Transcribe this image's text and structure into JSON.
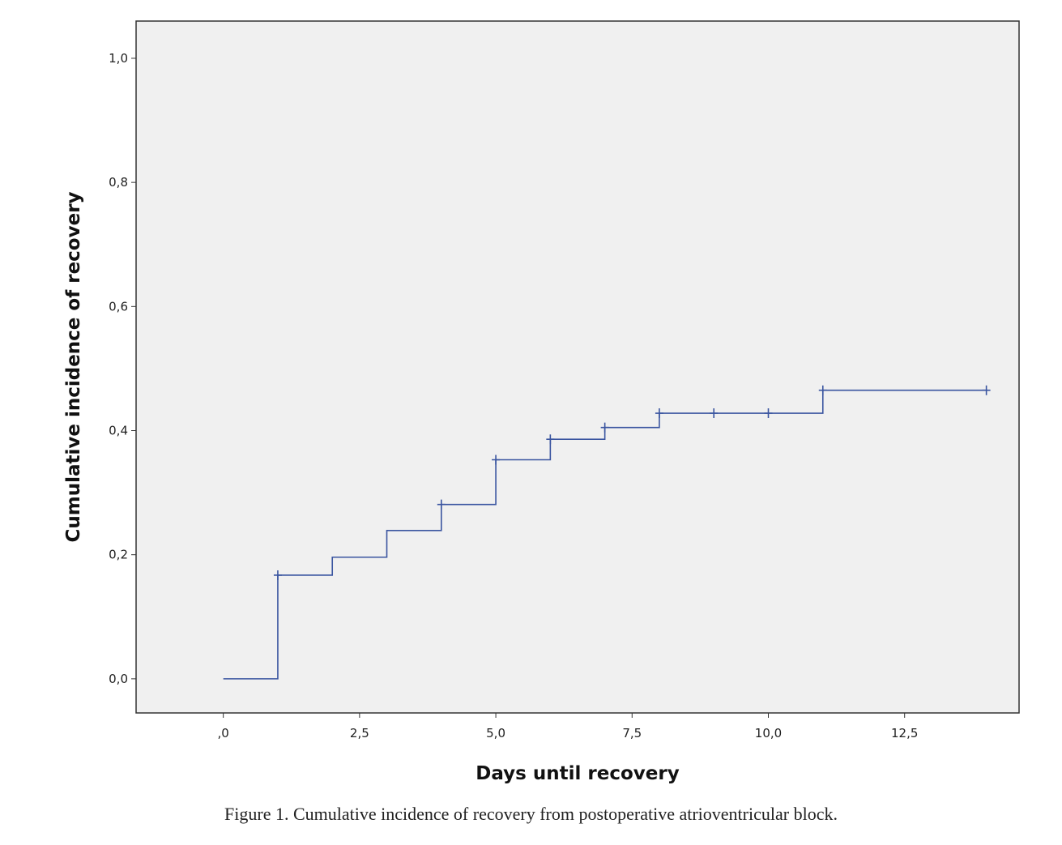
{
  "chart_data": {
    "type": "line",
    "subtype": "step",
    "xlabel": "Days until recovery",
    "ylabel": "Cumulative incidence of recovery",
    "xlim": [
      -1.6,
      14.6
    ],
    "ylim": [
      -0.055,
      1.06
    ],
    "x_ticks": [
      0,
      2.5,
      5,
      7.5,
      10,
      12.5
    ],
    "x_tick_labels": [
      ",0",
      "2,5",
      "5,0",
      "7,5",
      "10,0",
      "12,5"
    ],
    "y_ticks": [
      0,
      0.2,
      0.4,
      0.6,
      0.8,
      1.0
    ],
    "y_tick_labels": [
      "0,0",
      "0,2",
      "0,4",
      "0,6",
      "0,8",
      "1,0"
    ],
    "grid": false,
    "legend": "none",
    "series": [
      {
        "x": [
          0,
          1,
          2,
          3,
          4,
          5,
          6,
          7,
          8,
          11,
          14
        ],
        "y": [
          0,
          0.167,
          0.196,
          0.239,
          0.281,
          0.353,
          0.386,
          0.405,
          0.428,
          0.465,
          0.465
        ],
        "color": "#3a55a0",
        "censored": [
          {
            "x": 1,
            "y": 0.167
          },
          {
            "x": 4,
            "y": 0.281
          },
          {
            "x": 5,
            "y": 0.353
          },
          {
            "x": 6,
            "y": 0.386
          },
          {
            "x": 7,
            "y": 0.405
          },
          {
            "x": 8,
            "y": 0.428
          },
          {
            "x": 9,
            "y": 0.428
          },
          {
            "x": 10,
            "y": 0.428
          },
          {
            "x": 11,
            "y": 0.465
          },
          {
            "x": 14,
            "y": 0.465
          }
        ]
      }
    ],
    "plot_background": "#f0f0f0"
  },
  "caption": "Figure 1.  Cumulative incidence of recovery from postoperative atrioventricular block."
}
